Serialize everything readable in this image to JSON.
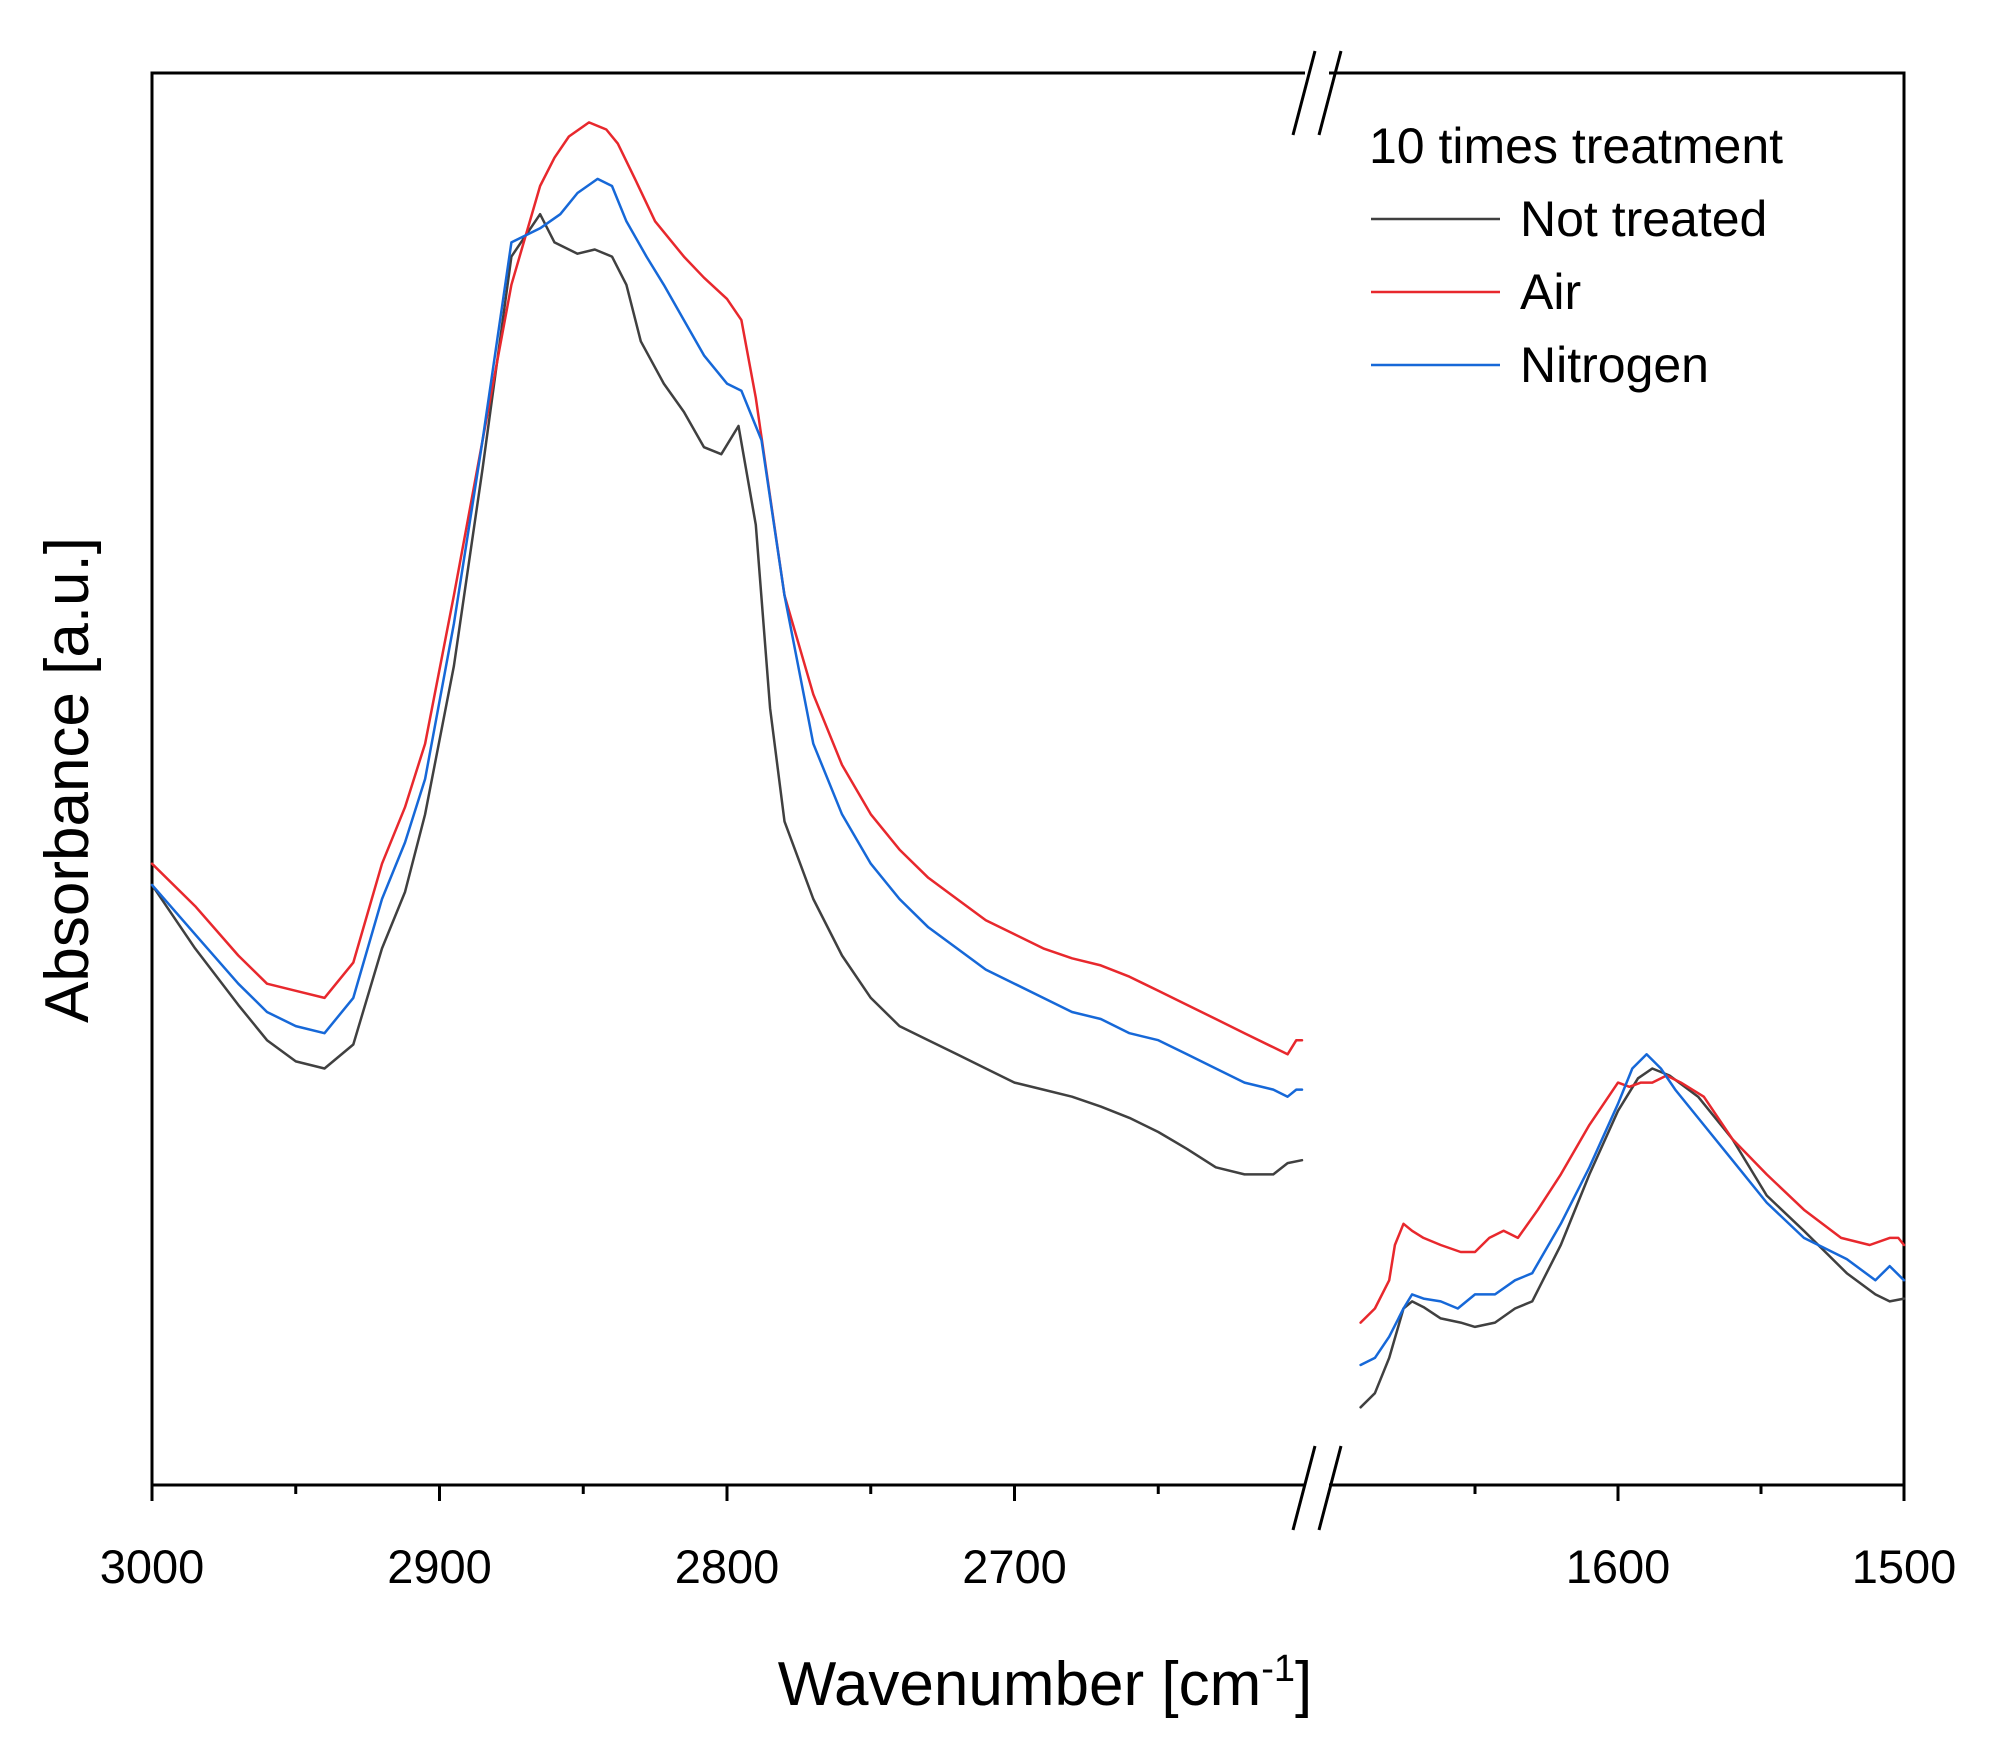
{
  "chart_data": {
    "type": "line",
    "xlabel_main": "Wavenumber [cm",
    "xlabel_sup": "-1",
    "xlabel_close": "]",
    "ylabel": "Absorbance [a.u.]",
    "legend_title": "10 times treatment",
    "legend_position": "top-right",
    "x_segments": [
      [
        3000,
        2600
      ],
      [
        1700,
        1500
      ]
    ],
    "y_range": [
      0,
      100
    ],
    "x_ticks": [
      {
        "value": 3000,
        "label": "3000"
      },
      {
        "value": 2900,
        "label": "2900"
      },
      {
        "value": 2800,
        "label": "2800"
      },
      {
        "value": 2700,
        "label": "2700"
      },
      {
        "value": 1600,
        "label": "1600"
      },
      {
        "value": 1500,
        "label": "1500"
      }
    ],
    "x_minor": [
      2950,
      2850,
      2750,
      2650,
      1650,
      1550
    ],
    "series": [
      {
        "name": "Not treated",
        "color": "#404040",
        "x": [
          3000,
          2985,
          2970,
          2960,
          2950,
          2940,
          2930,
          2920,
          2912,
          2905,
          2895,
          2885,
          2875,
          2865,
          2860,
          2858,
          2852,
          2846,
          2840,
          2835,
          2830,
          2822,
          2815,
          2808,
          2802,
          2796,
          2790,
          2785,
          2780,
          2770,
          2760,
          2750,
          2740,
          2730,
          2720,
          2710,
          2700,
          2690,
          2680,
          2670,
          2660,
          2650,
          2640,
          2630,
          2620,
          2610,
          2605,
          2600,
          1690,
          1685,
          1680,
          1675,
          1672,
          1668,
          1662,
          1655,
          1650,
          1643,
          1636,
          1630,
          1620,
          1610,
          1600,
          1593,
          1588,
          1582,
          1572,
          1560,
          1548,
          1535,
          1520,
          1510,
          1505,
          1500
        ],
        "y": [
          42.5,
          38.0,
          34.0,
          31.5,
          30.0,
          29.5,
          31.2,
          38.0,
          42.0,
          47.5,
          58.0,
          72.0,
          87.0,
          90.0,
          88.0,
          87.8,
          87.2,
          87.5,
          87.0,
          85.0,
          81.0,
          78.0,
          76.0,
          73.5,
          73.0,
          75.0,
          68.0,
          55.0,
          47.0,
          41.5,
          37.5,
          34.5,
          32.5,
          31.5,
          30.5,
          29.5,
          28.5,
          28.0,
          27.5,
          26.8,
          26.0,
          25.0,
          23.8,
          22.5,
          22.0,
          22.0,
          22.8,
          23.0,
          5.5,
          6.5,
          9.0,
          12.5,
          13.0,
          12.6,
          11.8,
          11.5,
          11.2,
          11.5,
          12.5,
          13.0,
          17.0,
          22.0,
          26.5,
          28.8,
          29.5,
          29.0,
          27.5,
          24.5,
          20.5,
          18.0,
          15.0,
          13.5,
          13.0,
          13.2
        ]
      },
      {
        "name": "Air",
        "color": "#e8282d",
        "x": [
          3000,
          2985,
          2970,
          2960,
          2950,
          2940,
          2930,
          2920,
          2912,
          2905,
          2895,
          2885,
          2875,
          2865,
          2860,
          2855,
          2848,
          2842,
          2838,
          2832,
          2825,
          2815,
          2808,
          2800,
          2795,
          2790,
          2785,
          2780,
          2770,
          2760,
          2750,
          2740,
          2730,
          2720,
          2710,
          2700,
          2690,
          2680,
          2670,
          2660,
          2650,
          2640,
          2630,
          2620,
          2610,
          2605,
          2602,
          2600,
          1690,
          1685,
          1680,
          1678,
          1675,
          1672,
          1668,
          1662,
          1655,
          1650,
          1645,
          1640,
          1635,
          1628,
          1620,
          1610,
          1600,
          1596,
          1592,
          1588,
          1583,
          1578,
          1570,
          1560,
          1548,
          1535,
          1522,
          1512,
          1505,
          1502,
          1500
        ],
        "y": [
          44.0,
          41.0,
          37.5,
          35.5,
          35.0,
          34.5,
          37.0,
          44.0,
          48.0,
          52.5,
          63.0,
          74.0,
          85.0,
          92.0,
          94.0,
          95.5,
          96.5,
          96.0,
          95.0,
          92.5,
          89.5,
          87.0,
          85.5,
          84.0,
          82.5,
          77.0,
          70.0,
          63.0,
          56.0,
          51.0,
          47.5,
          45.0,
          43.0,
          41.5,
          40.0,
          39.0,
          38.0,
          37.3,
          36.8,
          36.0,
          35.0,
          34.0,
          33.0,
          32.0,
          31.0,
          30.5,
          31.5,
          31.5,
          11.5,
          12.5,
          14.5,
          17.0,
          18.5,
          18.0,
          17.5,
          17.0,
          16.5,
          16.5,
          17.5,
          18.0,
          17.5,
          19.5,
          22.0,
          25.5,
          28.5,
          28.2,
          28.5,
          28.5,
          29.0,
          28.5,
          27.5,
          24.5,
          22.0,
          19.5,
          17.5,
          17.0,
          17.5,
          17.5,
          17.0
        ]
      },
      {
        "name": "Nitrogen",
        "color": "#1668d8",
        "x": [
          3000,
          2985,
          2970,
          2960,
          2950,
          2940,
          2930,
          2920,
          2912,
          2905,
          2895,
          2885,
          2875,
          2865,
          2858,
          2852,
          2845,
          2840,
          2835,
          2828,
          2822,
          2815,
          2808,
          2800,
          2795,
          2792,
          2788,
          2780,
          2770,
          2760,
          2750,
          2740,
          2730,
          2720,
          2710,
          2700,
          2690,
          2680,
          2670,
          2660,
          2650,
          2640,
          2630,
          2620,
          2610,
          2605,
          2602,
          2600,
          1690,
          1685,
          1680,
          1675,
          1672,
          1668,
          1662,
          1656,
          1650,
          1643,
          1636,
          1630,
          1620,
          1610,
          1600,
          1595,
          1590,
          1585,
          1580,
          1572,
          1560,
          1548,
          1535,
          1520,
          1510,
          1505,
          1500
        ],
        "y": [
          42.5,
          39.0,
          35.5,
          33.5,
          32.5,
          32.0,
          34.5,
          41.5,
          45.5,
          50.0,
          61.0,
          74.0,
          88.0,
          89.0,
          90.0,
          91.5,
          92.5,
          92.0,
          89.5,
          87.0,
          85.0,
          82.5,
          80.0,
          78.0,
          77.5,
          76.0,
          74.0,
          63.0,
          52.5,
          47.5,
          44.0,
          41.5,
          39.5,
          38.0,
          36.5,
          35.5,
          34.5,
          33.5,
          33.0,
          32.0,
          31.5,
          30.5,
          29.5,
          28.5,
          28.0,
          27.5,
          28.0,
          28.0,
          8.5,
          9.0,
          10.5,
          12.5,
          13.5,
          13.2,
          13.0,
          12.5,
          13.5,
          13.5,
          14.5,
          15.0,
          18.5,
          22.5,
          27.0,
          29.5,
          30.5,
          29.5,
          28.0,
          26.0,
          23.0,
          20.0,
          17.5,
          16.0,
          14.5,
          15.5,
          14.5
        ]
      }
    ]
  }
}
